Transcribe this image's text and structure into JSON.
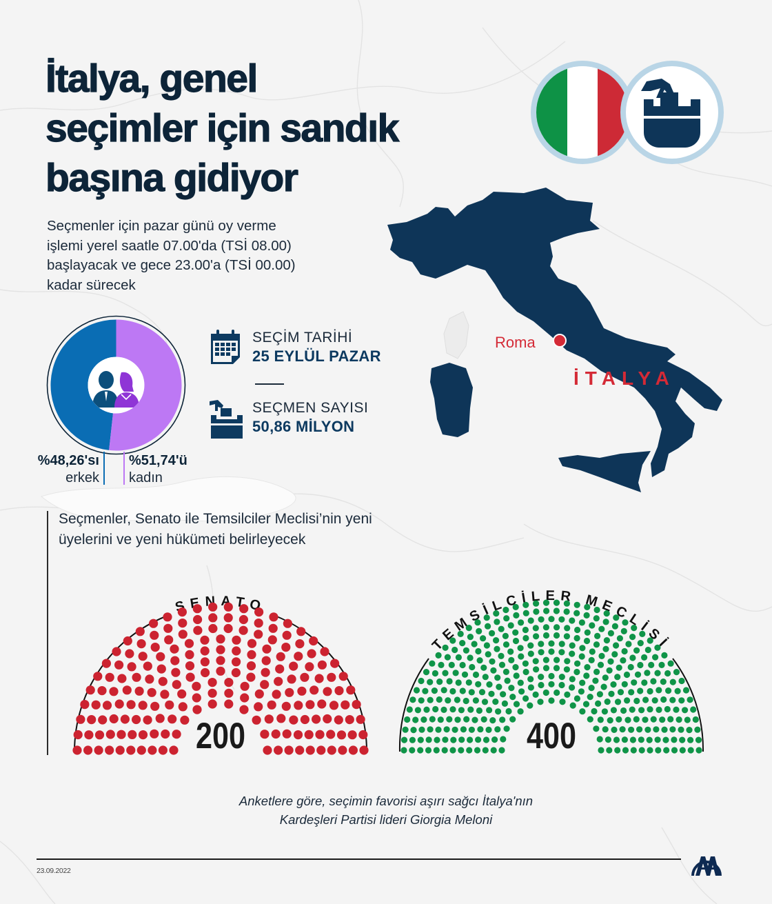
{
  "title": {
    "lines": [
      "İtalya, genel",
      "seçimler için sandık",
      "başına gidiyor"
    ]
  },
  "header_icons": {
    "flag": {
      "name": "italy-flag",
      "colors": [
        "#0e9246",
        "#ffffff",
        "#cd2a36"
      ]
    },
    "ballot": {
      "name": "ballot-box-icon",
      "color": "#0e3558"
    }
  },
  "lead_text": [
    "Seçmenler için pazar günü oy verme",
    "işlemi yerel saatle 07.00'da (TSİ 08.00)",
    "başlayacak ve gece 23.00'a (TSİ 00.00)",
    "kadar sürecek"
  ],
  "gender": {
    "male": {
      "value": "%48,26'sı",
      "label": "erkek",
      "percent": 48.26,
      "color": "#0a6db4"
    },
    "female": {
      "value": "%51,74'ü",
      "label": "kadın",
      "percent": 51.74,
      "color": "#bd78f4"
    },
    "icon": "male-female-users-icon"
  },
  "stats": [
    {
      "icon": "calendar-icon",
      "label": "SEÇİM TARİHİ",
      "value": "25 EYLÜL PAZAR"
    },
    {
      "icon": "ballot-box-icon",
      "label": "SEÇMEN SAYISI",
      "value": "50,86 MİLYON"
    }
  ],
  "map": {
    "country_label": "İTALYA",
    "city_label": "Roma",
    "country_color": "#0e3558",
    "accent_color": "#d42a36"
  },
  "section_text": [
    "Seçmenler, Senato ile Temsilciler Meclisi’nin yeni",
    "üyelerini ve yeni hükümeti belirleyecek"
  ],
  "chambers": [
    {
      "name": "SENATO",
      "seats": 200,
      "seats_label": "200",
      "color": "#cc2330",
      "rows": 10
    },
    {
      "name": "TEMSİLCİLER MECLİSİ",
      "seats": 400,
      "seats_label": "400",
      "color": "#0f9448",
      "rows": 13
    }
  ],
  "quote": [
    "Anketlere göre, seçimin favorisi aşırı sağcı İtalya'nın",
    "Kardeşleri Partisi lideri Giorgia Meloni"
  ],
  "footer": {
    "date": "23.09.2022",
    "logo": "AA"
  }
}
